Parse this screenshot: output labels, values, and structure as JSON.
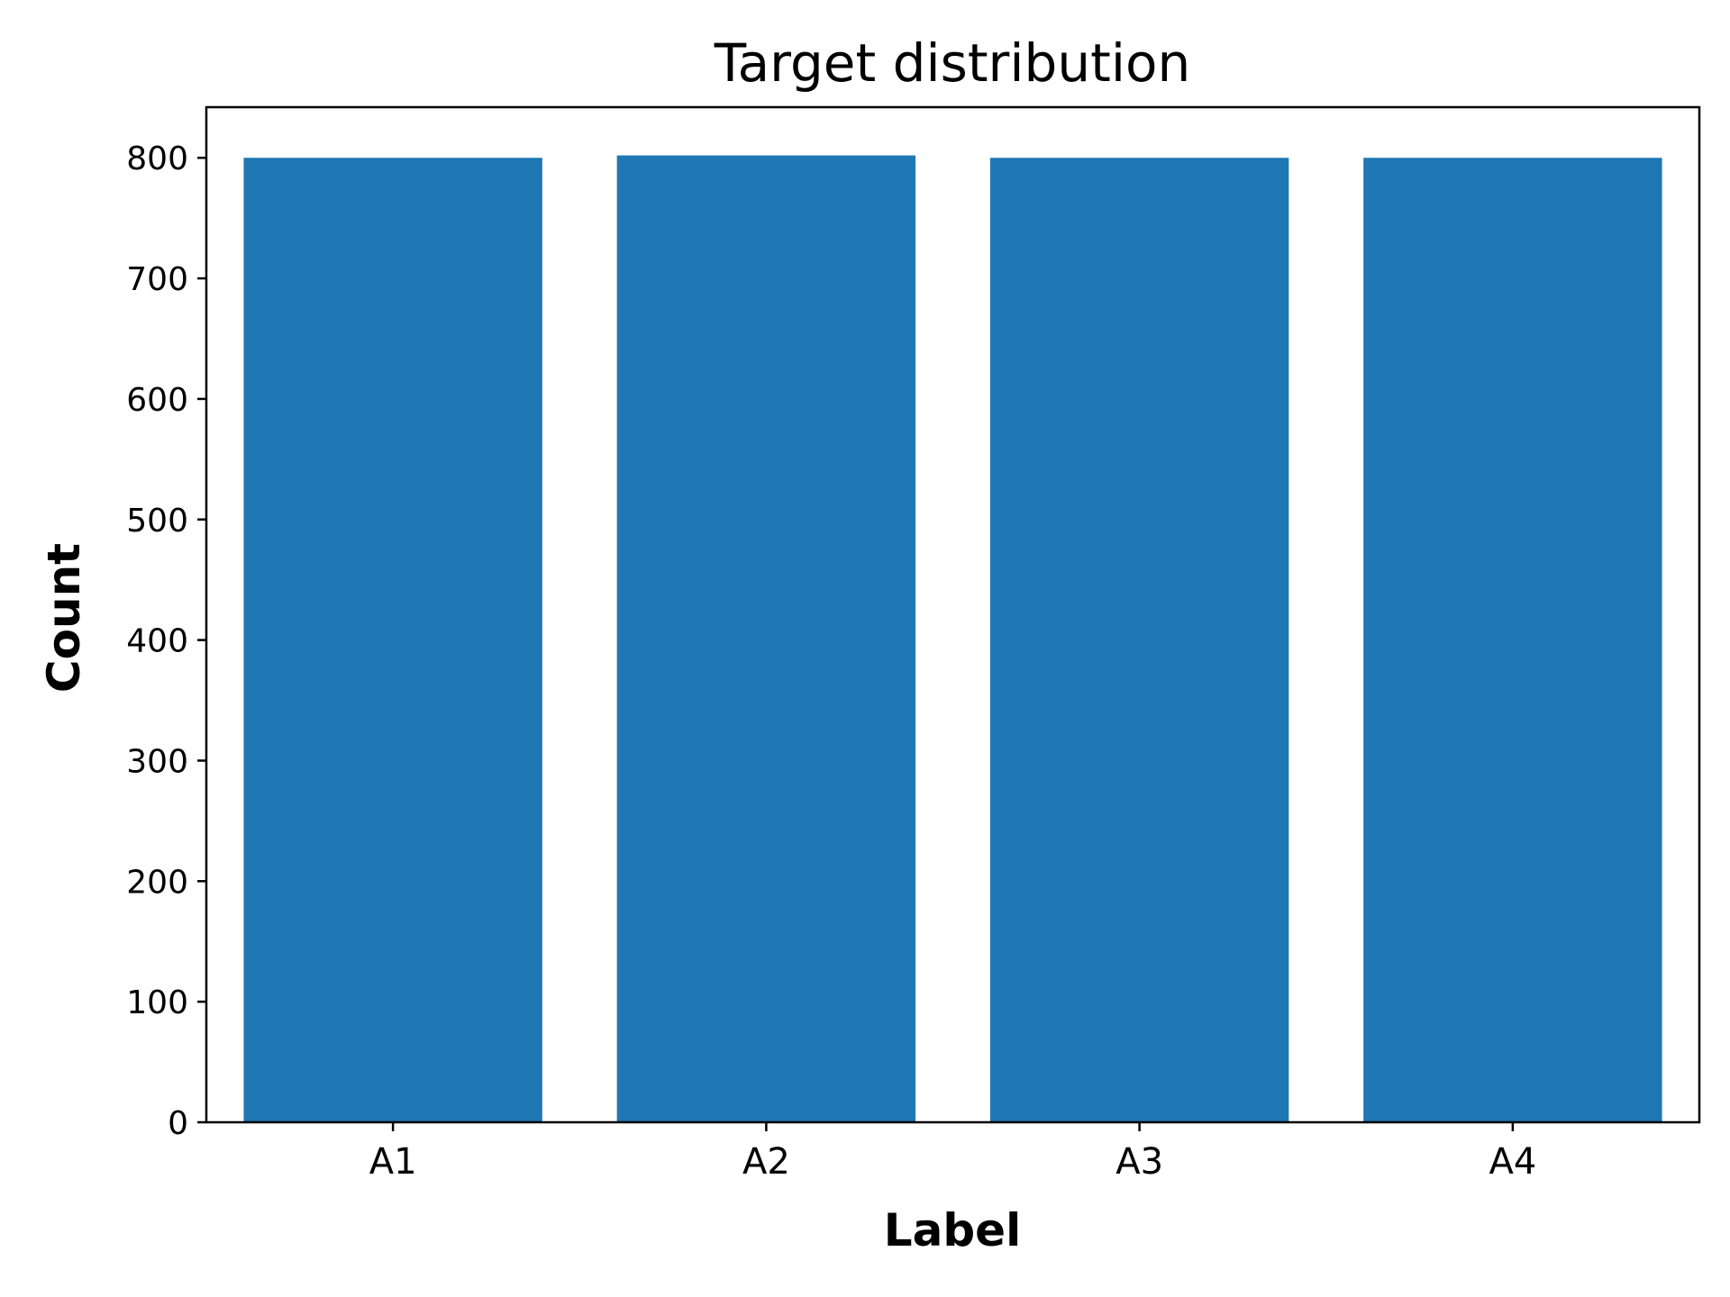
{
  "chart_data": {
    "type": "bar",
    "title": "Target distribution",
    "xlabel": "Label",
    "ylabel": "Count",
    "categories": [
      "A1",
      "A2",
      "A3",
      "A4"
    ],
    "values": [
      800,
      802,
      800,
      800
    ],
    "ylim": [
      0,
      842
    ],
    "yticks": [
      0,
      100,
      200,
      300,
      400,
      500,
      600,
      700,
      800
    ],
    "bar_color": "#1f77b4",
    "grid": false,
    "legend": "none"
  }
}
